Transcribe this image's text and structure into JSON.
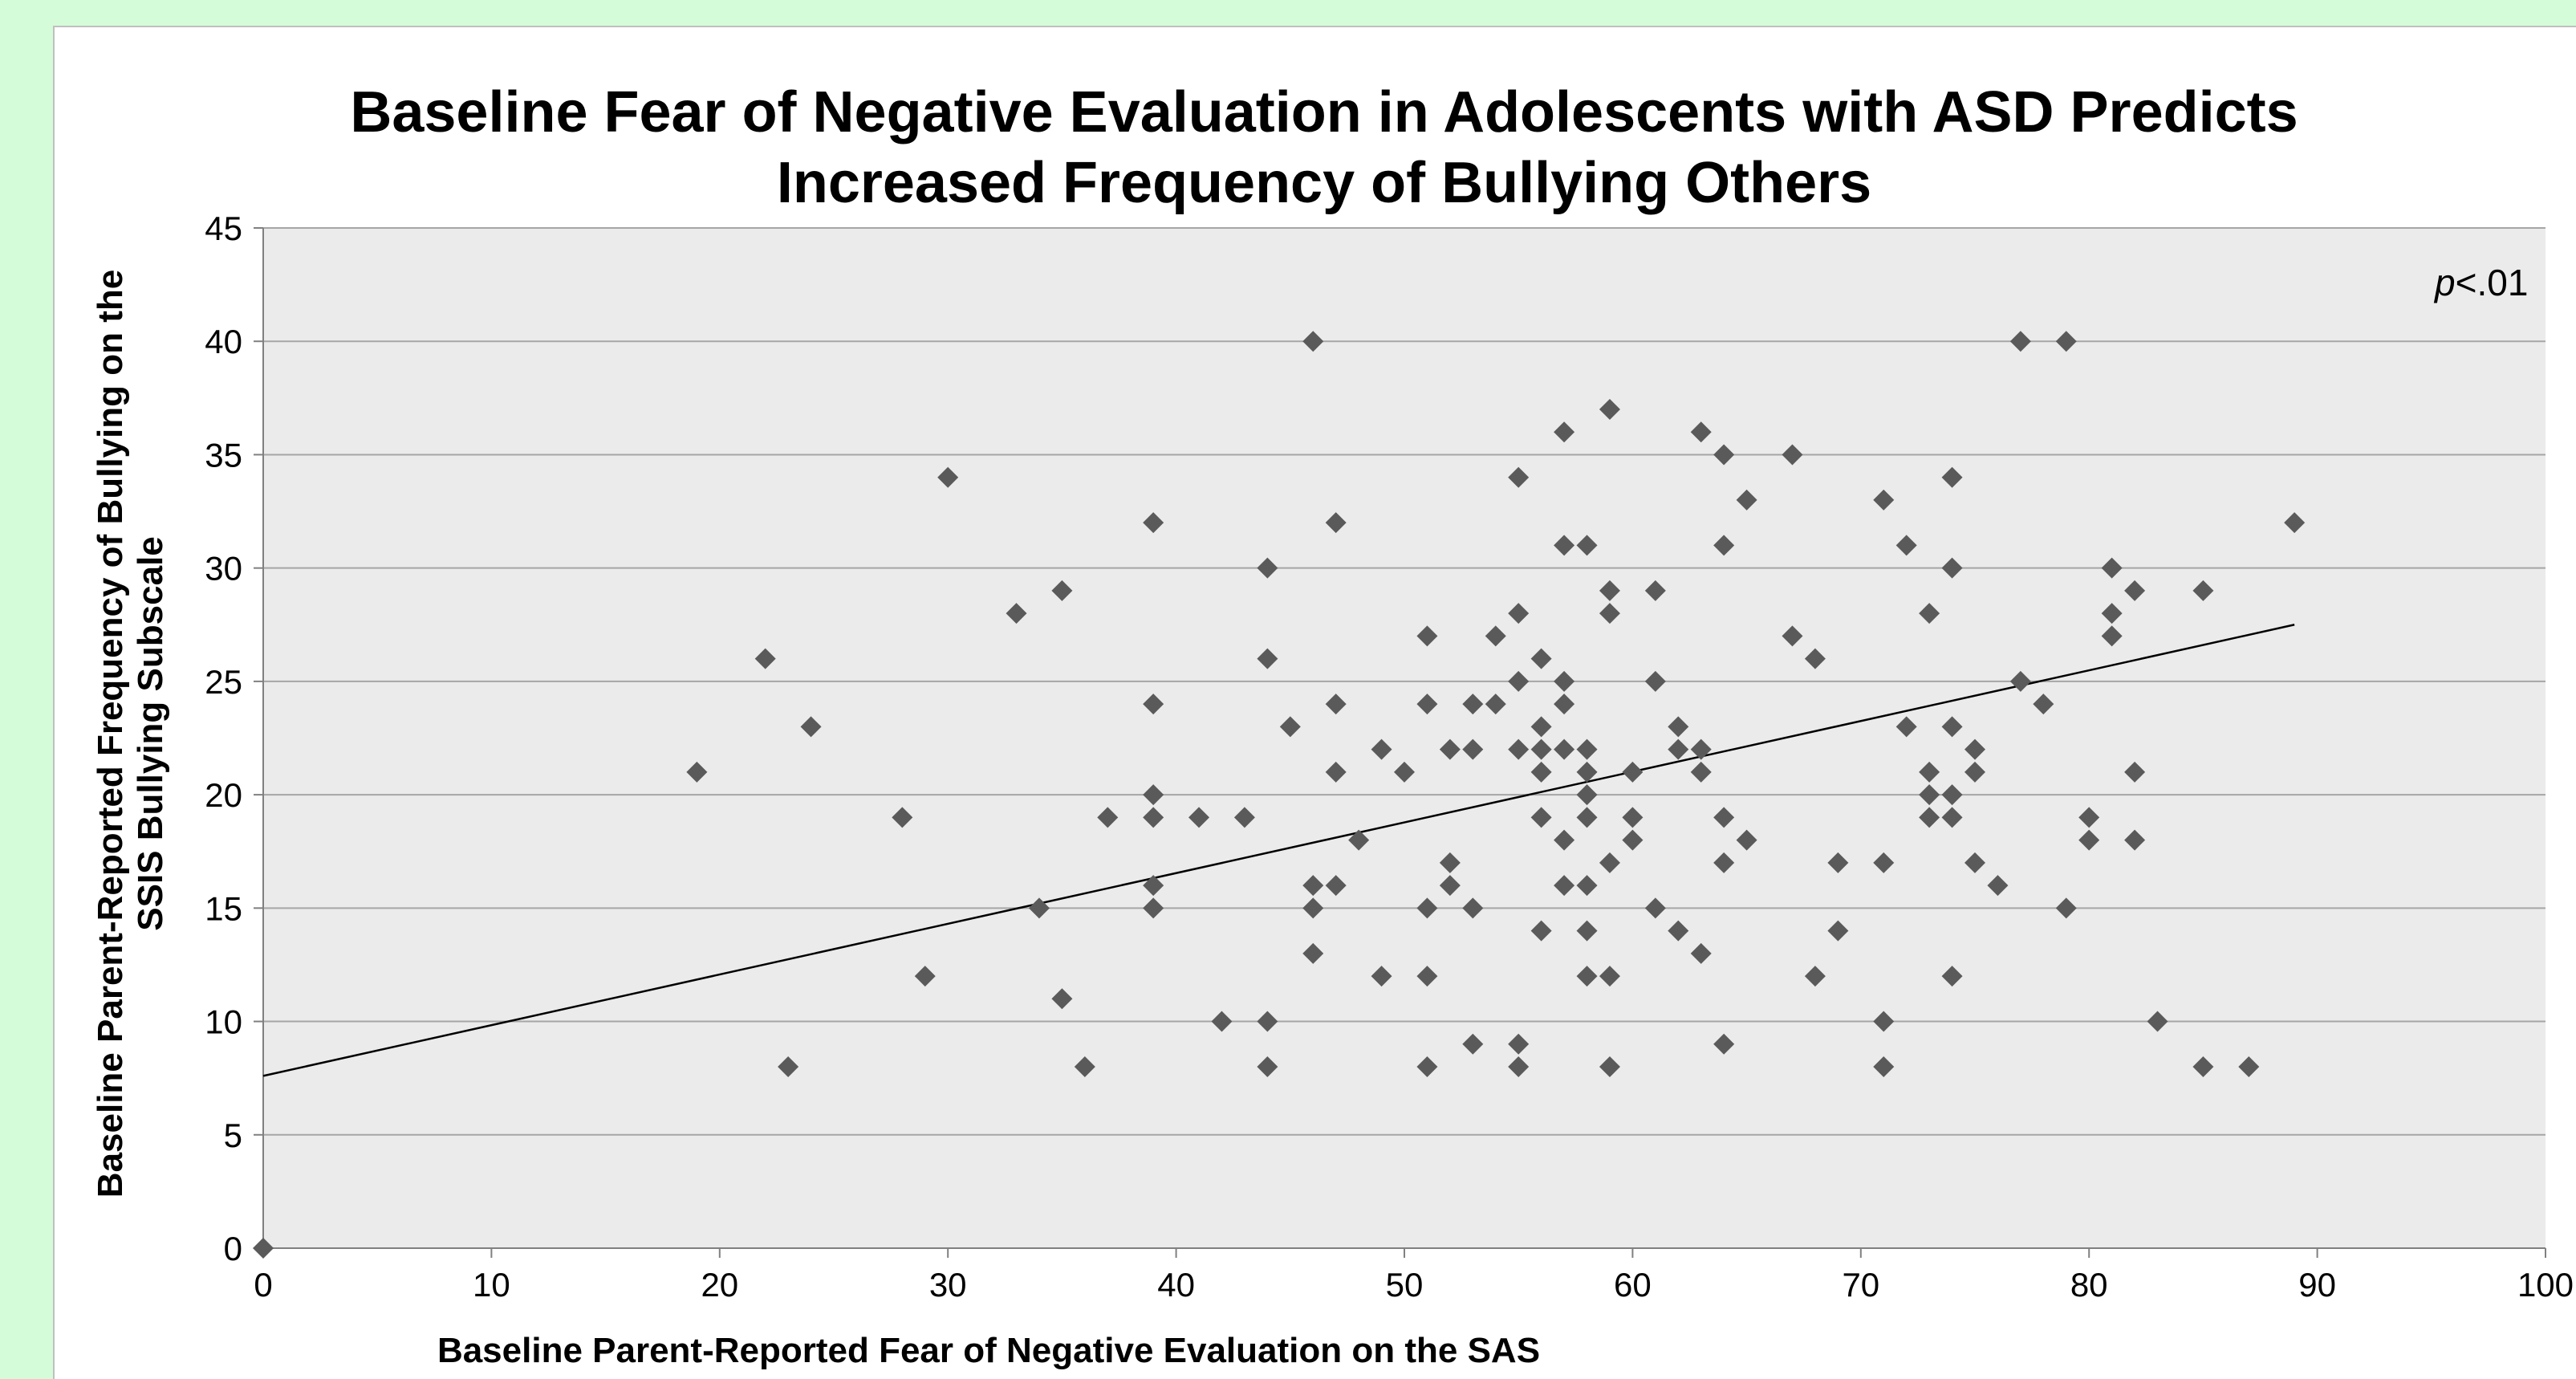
{
  "chart_data": {
    "type": "scatter",
    "title_lines": [
      "Baseline Fear of Negative Evaluation in Adolescents with ASD Predicts",
      "Increased Frequency of Bullying Others"
    ],
    "xlabel": "Baseline Parent-Reported Fear of Negative Evaluation on the SAS",
    "ylabel_lines": [
      "Baseline Parent-Reported Frequency of Bullying on the",
      "SSIS Bullying Subscale"
    ],
    "annotation": {
      "italic": "p",
      "text": "<.01"
    },
    "xlim": [
      0,
      100
    ],
    "ylim": [
      0,
      45
    ],
    "xticks": [
      "0",
      "10",
      "20",
      "30",
      "40",
      "50",
      "60",
      "70",
      "80",
      "90",
      "100"
    ],
    "yticks": [
      "0",
      "5",
      "10",
      "15",
      "20",
      "25",
      "30",
      "35",
      "40",
      "45"
    ],
    "grid": "horizontal",
    "marker": "diamond",
    "colors": {
      "marker": "#5a5a5a",
      "plot_bg": "#ebebeb",
      "grid": "#a6a6a6",
      "trendline": "#000000",
      "page_bg": "#d4fcd9"
    },
    "trendline": {
      "x": [
        0,
        89
      ],
      "y": [
        7.6,
        27.5
      ]
    },
    "points": [
      [
        0,
        0
      ],
      [
        19,
        21
      ],
      [
        22,
        26
      ],
      [
        23,
        8
      ],
      [
        24,
        23
      ],
      [
        28,
        19
      ],
      [
        29,
        12
      ],
      [
        30,
        34
      ],
      [
        33,
        28
      ],
      [
        34,
        15
      ],
      [
        35,
        29
      ],
      [
        35,
        11
      ],
      [
        36,
        8
      ],
      [
        37,
        19
      ],
      [
        39,
        32
      ],
      [
        39,
        24
      ],
      [
        39,
        20
      ],
      [
        39,
        19
      ],
      [
        39,
        16
      ],
      [
        39,
        15
      ],
      [
        41,
        19
      ],
      [
        42,
        10
      ],
      [
        43,
        19
      ],
      [
        44,
        30
      ],
      [
        44,
        26
      ],
      [
        44,
        10
      ],
      [
        44,
        8
      ],
      [
        45,
        23
      ],
      [
        46,
        40
      ],
      [
        46,
        16
      ],
      [
        46,
        15
      ],
      [
        46,
        13
      ],
      [
        47,
        32
      ],
      [
        47,
        24
      ],
      [
        47,
        21
      ],
      [
        47,
        16
      ],
      [
        48,
        18
      ],
      [
        49,
        22
      ],
      [
        49,
        12
      ],
      [
        50,
        21
      ],
      [
        51,
        27
      ],
      [
        51,
        24
      ],
      [
        51,
        15
      ],
      [
        51,
        12
      ],
      [
        51,
        8
      ],
      [
        52,
        22
      ],
      [
        52,
        17
      ],
      [
        52,
        16
      ],
      [
        53,
        24
      ],
      [
        53,
        22
      ],
      [
        53,
        15
      ],
      [
        53,
        9
      ],
      [
        54,
        27
      ],
      [
        54,
        24
      ],
      [
        55,
        34
      ],
      [
        55,
        28
      ],
      [
        55,
        25
      ],
      [
        55,
        22
      ],
      [
        55,
        9
      ],
      [
        55,
        8
      ],
      [
        56,
        26
      ],
      [
        56,
        23
      ],
      [
        56,
        22
      ],
      [
        56,
        21
      ],
      [
        56,
        19
      ],
      [
        56,
        14
      ],
      [
        57,
        36
      ],
      [
        57,
        31
      ],
      [
        57,
        25
      ],
      [
        57,
        24
      ],
      [
        57,
        22
      ],
      [
        57,
        18
      ],
      [
        57,
        16
      ],
      [
        58,
        31
      ],
      [
        58,
        22
      ],
      [
        58,
        21
      ],
      [
        58,
        20
      ],
      [
        58,
        19
      ],
      [
        58,
        16
      ],
      [
        58,
        14
      ],
      [
        58,
        12
      ],
      [
        59,
        37
      ],
      [
        59,
        29
      ],
      [
        59,
        28
      ],
      [
        59,
        17
      ],
      [
        59,
        12
      ],
      [
        59,
        8
      ],
      [
        60,
        21
      ],
      [
        60,
        19
      ],
      [
        60,
        18
      ],
      [
        61,
        29
      ],
      [
        61,
        25
      ],
      [
        61,
        15
      ],
      [
        62,
        23
      ],
      [
        62,
        22
      ],
      [
        62,
        14
      ],
      [
        63,
        36
      ],
      [
        63,
        22
      ],
      [
        63,
        21
      ],
      [
        63,
        13
      ],
      [
        64,
        35
      ],
      [
        64,
        31
      ],
      [
        64,
        19
      ],
      [
        64,
        17
      ],
      [
        64,
        9
      ],
      [
        65,
        33
      ],
      [
        65,
        18
      ],
      [
        67,
        35
      ],
      [
        67,
        27
      ],
      [
        68,
        26
      ],
      [
        68,
        12
      ],
      [
        69,
        17
      ],
      [
        69,
        14
      ],
      [
        71,
        33
      ],
      [
        71,
        17
      ],
      [
        71,
        10
      ],
      [
        71,
        8
      ],
      [
        72,
        31
      ],
      [
        72,
        23
      ],
      [
        73,
        28
      ],
      [
        73,
        21
      ],
      [
        73,
        20
      ],
      [
        73,
        19
      ],
      [
        74,
        34
      ],
      [
        74,
        30
      ],
      [
        74,
        23
      ],
      [
        74,
        20
      ],
      [
        74,
        19
      ],
      [
        74,
        12
      ],
      [
        75,
        22
      ],
      [
        75,
        21
      ],
      [
        75,
        17
      ],
      [
        76,
        16
      ],
      [
        77,
        40
      ],
      [
        77,
        25
      ],
      [
        78,
        24
      ],
      [
        79,
        40
      ],
      [
        79,
        15
      ],
      [
        80,
        19
      ],
      [
        80,
        18
      ],
      [
        81,
        30
      ],
      [
        81,
        28
      ],
      [
        81,
        27
      ],
      [
        82,
        29
      ],
      [
        82,
        21
      ],
      [
        82,
        18
      ],
      [
        83,
        10
      ],
      [
        85,
        29
      ],
      [
        85,
        8
      ],
      [
        87,
        8
      ],
      [
        89,
        32
      ]
    ]
  }
}
